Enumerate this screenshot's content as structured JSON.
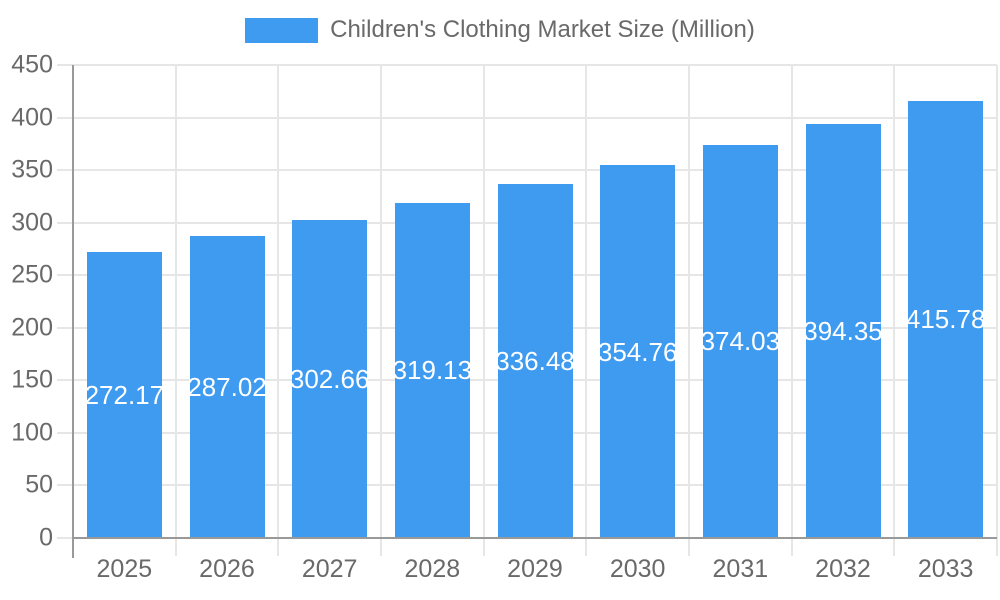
{
  "legend": {
    "label": "Children's Clothing Market Size (Million)"
  },
  "colors": {
    "bar": "#3E9BF0",
    "text": "#696969",
    "grid": "#E6E6E6",
    "axis": "#999999",
    "value_label": "#FFFFFF",
    "background": "#FFFFFF"
  },
  "chart_data": {
    "type": "bar",
    "title": "Children's Clothing Market Size (Million)",
    "categories": [
      "2025",
      "2026",
      "2027",
      "2028",
      "2029",
      "2030",
      "2031",
      "2032",
      "2033"
    ],
    "values": [
      272.17,
      287.02,
      302.66,
      319.13,
      336.48,
      354.76,
      374.03,
      394.35,
      415.78
    ],
    "value_labels": [
      "272.17",
      "287.02",
      "302.66",
      "319.13",
      "336.48",
      "354.76",
      "374.03",
      "394.35",
      "415.78"
    ],
    "xlabel": "",
    "ylabel": "",
    "ylim": [
      0,
      450
    ],
    "yticks": [
      0,
      50,
      100,
      150,
      200,
      250,
      300,
      350,
      400,
      450
    ],
    "grid": true,
    "legend_position": "top",
    "value_label_position": "inside-center",
    "bar_color": "#3E9BF0"
  }
}
